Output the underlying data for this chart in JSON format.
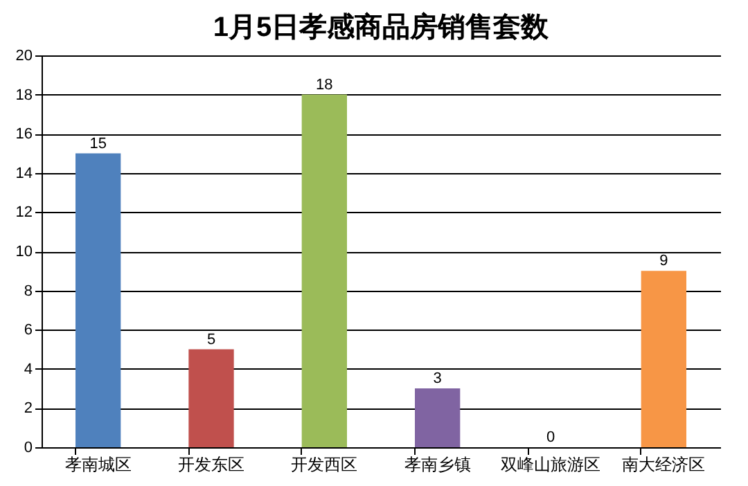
{
  "chart_data": {
    "type": "bar",
    "title": "1月5日孝感商品房销售套数",
    "categories": [
      "孝南城区",
      "开发东区",
      "开发西区",
      "孝南乡镇",
      "双峰山旅游区",
      "南大经济区"
    ],
    "values": [
      15,
      5,
      18,
      3,
      0,
      9
    ],
    "colors": [
      "#4f81bd",
      "#c0504d",
      "#9bbb59",
      "#8064a2",
      "#4bacc6",
      "#f79646"
    ],
    "ylim": [
      0,
      20
    ],
    "yticks": [
      0,
      2,
      4,
      6,
      8,
      10,
      12,
      14,
      16,
      18,
      20
    ],
    "grid": "y",
    "data_labels": true,
    "legend": false
  }
}
